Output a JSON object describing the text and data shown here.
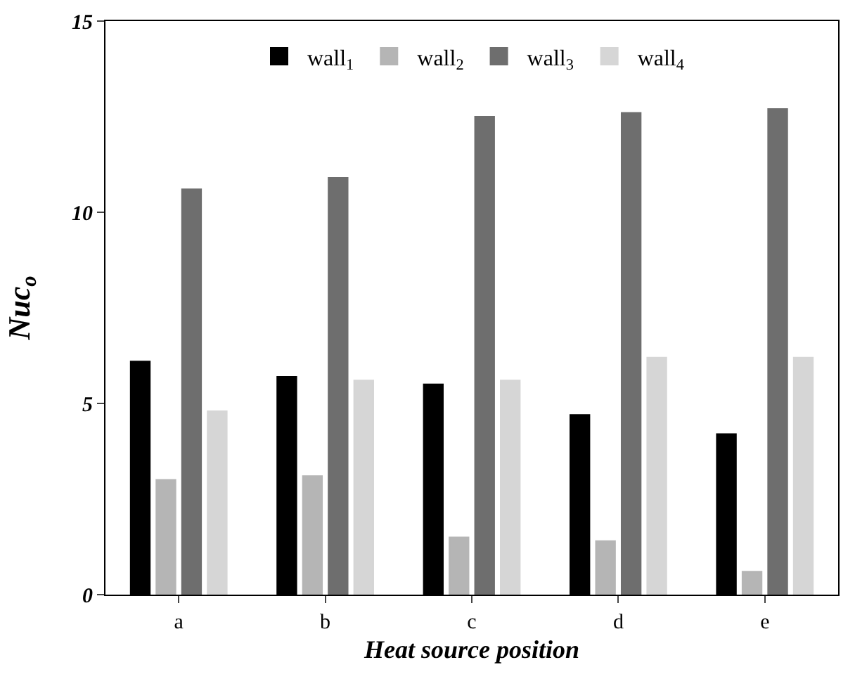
{
  "chart_data": {
    "type": "bar",
    "xlabel": "Heat source position",
    "ylabel": "Nuc$_{o}$",
    "categories": [
      "a",
      "b",
      "c",
      "d",
      "e"
    ],
    "series": [
      {
        "name": "wall$_{1}$",
        "color": "#000000",
        "values": [
          6.1,
          5.7,
          5.5,
          4.7,
          4.2
        ]
      },
      {
        "name": "wall$_{2}$",
        "color": "#b5b5b5",
        "values": [
          3.0,
          3.1,
          1.5,
          1.4,
          0.6
        ]
      },
      {
        "name": "wall$_{3}$",
        "color": "#6e6e6e",
        "values": [
          10.6,
          10.9,
          12.5,
          12.6,
          12.7
        ]
      },
      {
        "name": "wall$_{4}$",
        "color": "#d6d6d6",
        "values": [
          4.8,
          5.6,
          5.6,
          6.2,
          6.2
        ]
      }
    ],
    "ylim": [
      0,
      15
    ],
    "yticks": [
      0,
      5,
      10,
      15
    ],
    "grid": false,
    "legend": "top"
  }
}
